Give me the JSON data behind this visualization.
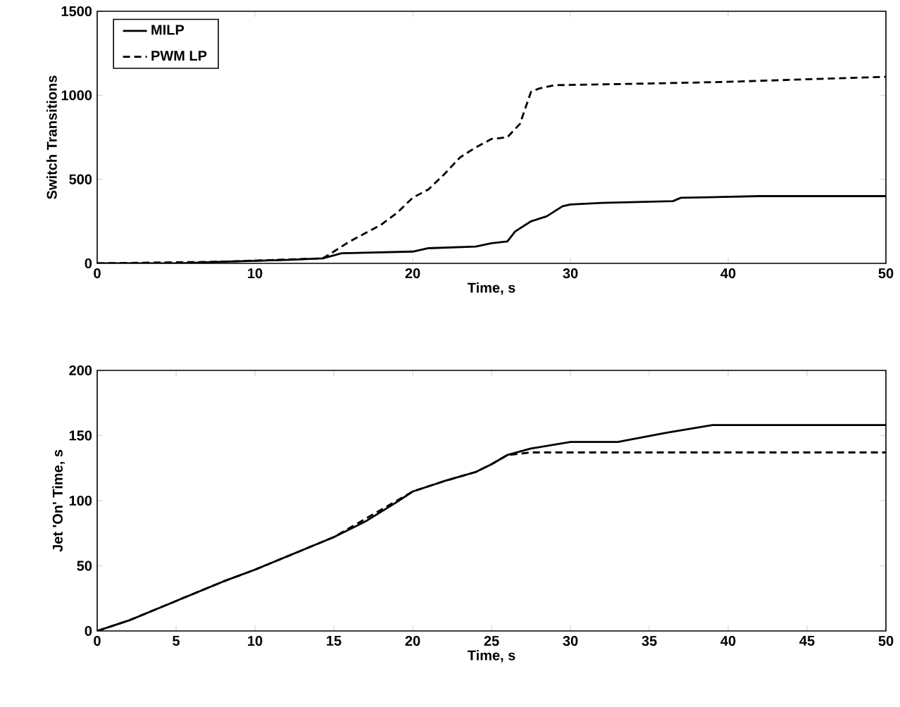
{
  "chart_data": [
    {
      "type": "line",
      "xlabel": "Time, s",
      "ylabel": "Switch Transitions",
      "xlim": [
        0,
        50
      ],
      "ylim": [
        0,
        1500
      ],
      "xticks": [
        0,
        10,
        20,
        30,
        40,
        50
      ],
      "yticks": [
        0,
        500,
        1000,
        1500
      ],
      "legend": "top left",
      "grid": false,
      "series": [
        {
          "name": "MILP",
          "color": "#000000",
          "line_style": "solid",
          "x": [
            0,
            5,
            8,
            12,
            14.3,
            15.5,
            20,
            21,
            24,
            25,
            26,
            26.5,
            27.5,
            28.5,
            29.5,
            30,
            32,
            36.5,
            37,
            42,
            50
          ],
          "values": [
            0,
            0,
            10,
            20,
            30,
            60,
            70,
            90,
            100,
            120,
            130,
            190,
            250,
            280,
            340,
            350,
            360,
            370,
            390,
            400,
            400
          ]
        },
        {
          "name": "PWM LP",
          "color": "#000000",
          "line_style": "dashed",
          "x": [
            0,
            8,
            14.3,
            15,
            16,
            18,
            19,
            20,
            21,
            22,
            23,
            24,
            25,
            26,
            26.8,
            27.5,
            28,
            29,
            35,
            40,
            50
          ],
          "values": [
            0,
            10,
            30,
            70,
            130,
            230,
            300,
            390,
            440,
            530,
            630,
            690,
            740,
            750,
            830,
            1020,
            1040,
            1060,
            1070,
            1080,
            1110
          ]
        }
      ]
    },
    {
      "type": "line",
      "xlabel": "Time, s",
      "ylabel": "Jet 'On' Time, s",
      "xlim": [
        0,
        50
      ],
      "ylim": [
        0,
        200
      ],
      "xticks": [
        0,
        5,
        10,
        15,
        20,
        25,
        30,
        35,
        40,
        45,
        50
      ],
      "yticks": [
        0,
        50,
        100,
        150,
        200
      ],
      "grid": false,
      "series": [
        {
          "color": "#000000",
          "line_style": "solid",
          "x": [
            0,
            2,
            5,
            8,
            10,
            15,
            17,
            19,
            20,
            22,
            24,
            25,
            26,
            27.5,
            30,
            33,
            36,
            39,
            50
          ],
          "values": [
            0,
            8,
            23,
            38,
            47,
            72,
            84,
            99,
            107,
            115,
            122,
            128,
            135,
            140,
            145,
            145,
            152,
            158,
            158
          ]
        },
        {
          "color": "#000000",
          "line_style": "dashed",
          "x": [
            0,
            2,
            5,
            8,
            10,
            15,
            17,
            19,
            20,
            22,
            24,
            25,
            26,
            27.5,
            50
          ],
          "values": [
            0,
            8,
            23,
            38,
            47,
            72,
            86,
            100,
            107,
            115,
            122,
            128,
            135,
            137,
            137
          ]
        }
      ]
    }
  ]
}
